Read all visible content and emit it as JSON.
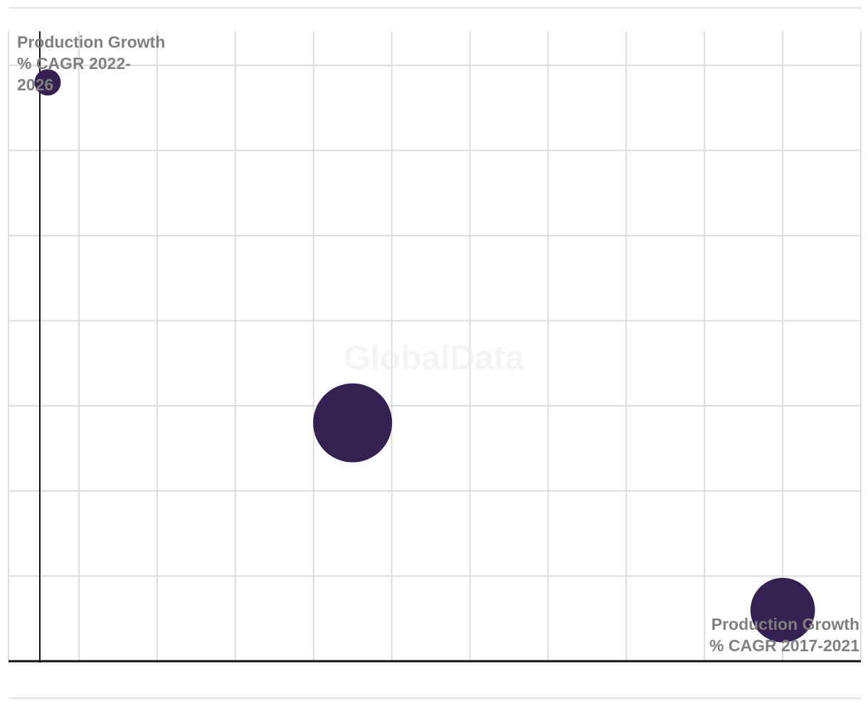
{
  "watermark": "GlobalData",
  "chart_data": {
    "type": "scatter",
    "title": "",
    "xlabel": "Production Growth % CAGR 2017-2021",
    "xlabel_lines": [
      "Production Growth",
      "% CAGR 2017-2021"
    ],
    "ylabel": "Production Growth % CAGR 2022-2026",
    "ylabel_lines": [
      "Production Growth",
      "% CAGR 2022-",
      "2026"
    ],
    "xlim": [
      -0.4,
      10.5
    ],
    "ylim": [
      0,
      7.4
    ],
    "x_gridlines": [
      -0.4,
      0.5,
      1.5,
      2.5,
      3.5,
      4.5,
      5.5,
      6.5,
      7.5,
      8.5,
      9.5,
      10.5
    ],
    "y_gridlines": [
      1,
      2,
      3,
      4,
      5,
      6,
      7
    ],
    "grid": true,
    "legend": "none",
    "bubble_color": "#352151",
    "points": [
      {
        "x": 0.1,
        "y": 6.8,
        "size": 1.0
      },
      {
        "x": 4.0,
        "y": 2.8,
        "size": 9.0
      },
      {
        "x": 9.5,
        "y": 0.6,
        "size": 6.0
      }
    ]
  }
}
